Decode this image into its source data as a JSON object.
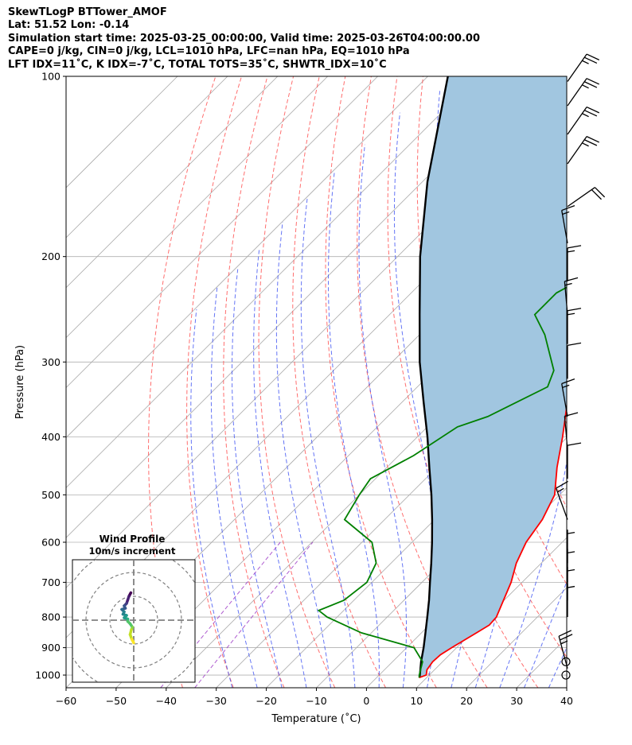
{
  "header": {
    "line1": "SkewTLogP BTTower_AMOF",
    "line2": "Lat: 51.52   Lon: -0.14",
    "line3": "Simulation start time: 2025-03-25_00:00:00, Valid time: 2025-03-26T04:00:00.00",
    "line4": "CAPE=0 j/kg, CIN=0 j/kg, LCL=1010 hPa, LFC=nan hPa, EQ=1010 hPa",
    "line5": "LFT IDX=11˚C, K IDX=-7˚C, TOTAL TOTS=35˚C, SHWTR_IDX=10˚C"
  },
  "chart_data": {
    "type": "skewt",
    "xlabel": "Temperature (˚C)",
    "ylabel": "Pressure (hPa)",
    "xlim": [
      -60,
      40
    ],
    "ylim": [
      1050,
      100
    ],
    "xticks": [
      "−60",
      "−50",
      "−40",
      "−30",
      "−20",
      "−10",
      "0",
      "10",
      "20",
      "30",
      "40"
    ],
    "yticks": [
      "100",
      "200",
      "300",
      "400",
      "500",
      "600",
      "700",
      "800",
      "900",
      "1000"
    ],
    "temperature_profile": [
      {
        "p": 1010,
        "t": 8.5
      },
      {
        "p": 1000,
        "t": 9.4
      },
      {
        "p": 980,
        "t": 8.5
      },
      {
        "p": 950,
        "t": 8.0
      },
      {
        "p": 925,
        "t": 8.2
      },
      {
        "p": 900,
        "t": 9.0
      },
      {
        "p": 850,
        "t": 11.0
      },
      {
        "p": 825,
        "t": 12.0
      },
      {
        "p": 800,
        "t": 11.8
      },
      {
        "p": 700,
        "t": 7.8
      },
      {
        "p": 650,
        "t": 5.0
      },
      {
        "p": 600,
        "t": 2.8
      },
      {
        "p": 550,
        "t": 1.5
      },
      {
        "p": 500,
        "t": -1.0
      },
      {
        "p": 450,
        "t": -6.0
      },
      {
        "p": 400,
        "t": -11.0
      },
      {
        "p": 350,
        "t": -17.0
      },
      {
        "p": 300,
        "t": -24.5
      },
      {
        "p": 270,
        "t": -29.5
      },
      {
        "p": 250,
        "t": -32.5
      },
      {
        "p": 230,
        "t": -33.5
      },
      {
        "p": 215,
        "t": -35.0
      },
      {
        "p": 200,
        "t": -37.0
      },
      {
        "p": 180,
        "t": -37.5
      },
      {
        "p": 160,
        "t": -36.0
      },
      {
        "p": 150,
        "t": -35.5
      },
      {
        "p": 135,
        "t": -34.5
      },
      {
        "p": 120,
        "t": -34.5
      },
      {
        "p": 110,
        "t": -36.0
      },
      {
        "p": 100,
        "t": -38.0
      }
    ],
    "dewpoint_profile": [
      {
        "p": 1010,
        "td": 8.5
      },
      {
        "p": 1000,
        "td": 8.0
      },
      {
        "p": 950,
        "td": 6.0
      },
      {
        "p": 900,
        "td": 1.5
      },
      {
        "p": 850,
        "td": -12.0
      },
      {
        "p": 800,
        "td": -22.0
      },
      {
        "p": 780,
        "td": -25.0
      },
      {
        "p": 750,
        "td": -22.0
      },
      {
        "p": 700,
        "td": -21.0
      },
      {
        "p": 650,
        "td": -23.0
      },
      {
        "p": 600,
        "td": -28.0
      },
      {
        "p": 550,
        "td": -38.0
      },
      {
        "p": 500,
        "td": -40.0
      },
      {
        "p": 470,
        "td": -41.0
      },
      {
        "p": 430,
        "td": -37.0
      },
      {
        "p": 385,
        "td": -34.0
      },
      {
        "p": 370,
        "td": -30.0
      },
      {
        "p": 330,
        "td": -24.0
      },
      {
        "p": 310,
        "td": -26.0
      },
      {
        "p": 270,
        "td": -35.0
      },
      {
        "p": 250,
        "td": -41.0
      },
      {
        "p": 230,
        "td": -41.0
      },
      {
        "p": 205,
        "td": -36.0
      },
      {
        "p": 180,
        "td": -42.0
      },
      {
        "p": 160,
        "td": -42.5
      },
      {
        "p": 145,
        "td": -43.0
      },
      {
        "p": 130,
        "td": -41.0
      },
      {
        "p": 100,
        "td": -35.0
      }
    ],
    "parcel_profile": [
      {
        "p": 1010,
        "t": 8.6
      },
      {
        "p": 950,
        "t": 5.7
      },
      {
        "p": 900,
        "t": 3.4
      },
      {
        "p": 850,
        "t": 0.8
      },
      {
        "p": 800,
        "t": -2.0
      },
      {
        "p": 750,
        "t": -5.0
      },
      {
        "p": 700,
        "t": -8.4
      },
      {
        "p": 650,
        "t": -12.0
      },
      {
        "p": 600,
        "t": -16.0
      },
      {
        "p": 550,
        "t": -20.5
      },
      {
        "p": 500,
        "t": -25.6
      },
      {
        "p": 450,
        "t": -31.5
      },
      {
        "p": 400,
        "t": -38.0
      },
      {
        "p": 350,
        "t": -45.7
      },
      {
        "p": 300,
        "t": -54.5
      },
      {
        "p": 250,
        "t": -64.0
      },
      {
        "p": 200,
        "t": -75.5
      },
      {
        "p": 150,
        "t": -89.0
      },
      {
        "p": 100,
        "t": -106.0
      }
    ],
    "wind_barbs": [
      {
        "p": 1000,
        "speed_kt": 0
      },
      {
        "p": 950,
        "speed_kt": 0
      },
      {
        "p": 975,
        "speed_kt": 25,
        "dir": 255
      },
      {
        "p": 800,
        "speed_kt": 5,
        "dir": 270
      },
      {
        "p": 750,
        "speed_kt": 5,
        "dir": 270
      },
      {
        "p": 700,
        "speed_kt": 5,
        "dir": 270
      },
      {
        "p": 650,
        "speed_kt": 5,
        "dir": 270
      },
      {
        "p": 550,
        "speed_kt": 15,
        "dir": 250
      },
      {
        "p": 470,
        "speed_kt": 10,
        "dir": 270
      },
      {
        "p": 420,
        "speed_kt": 10,
        "dir": 265
      },
      {
        "p": 370,
        "speed_kt": 15,
        "dir": 260
      },
      {
        "p": 320,
        "speed_kt": 10,
        "dir": 270
      },
      {
        "p": 280,
        "speed_kt": 15,
        "dir": 270
      },
      {
        "p": 250,
        "speed_kt": 15,
        "dir": 265
      },
      {
        "p": 220,
        "speed_kt": 15,
        "dir": 270
      },
      {
        "p": 190,
        "speed_kt": 15,
        "dir": 260
      },
      {
        "p": 165,
        "speed_kt": 20,
        "dir": 325
      },
      {
        "p": 140,
        "speed_kt": 25,
        "dir": 305
      },
      {
        "p": 125,
        "speed_kt": 25,
        "dir": 305
      },
      {
        "p": 112,
        "speed_kt": 25,
        "dir": 305
      },
      {
        "p": 102,
        "speed_kt": 25,
        "dir": 305
      }
    ],
    "hodograph": {
      "title": "Wind Profile",
      "subtitle": "10m/s increment",
      "points": [
        {
          "u": -1.2,
          "v": 11.5
        },
        {
          "u": -2,
          "v": 10
        },
        {
          "u": -2.5,
          "v": 8.5
        },
        {
          "u": -3,
          "v": 7
        },
        {
          "u": -4,
          "v": 6
        },
        {
          "u": -3.5,
          "v": 5
        },
        {
          "u": -5,
          "v": 4.5
        },
        {
          "u": -4,
          "v": 3.5
        },
        {
          "u": -4.5,
          "v": 2.5
        },
        {
          "u": -3,
          "v": 2
        },
        {
          "u": -4,
          "v": 1
        },
        {
          "u": -2.5,
          "v": 0.5
        },
        {
          "u": -2.5,
          "v": -0.5
        },
        {
          "u": -1.5,
          "v": -1.5
        },
        {
          "u": -0.5,
          "v": -3
        },
        {
          "u": -1,
          "v": -4
        },
        {
          "u": -1.5,
          "v": -6
        },
        {
          "u": -0.8,
          "v": -8
        },
        {
          "u": 0,
          "v": -9.5
        }
      ]
    },
    "colors": {
      "temperature": "#ff0000",
      "dewpoint": "#008000",
      "parcel": "#000000",
      "cape_fill": "#a1c6e0",
      "dry_adiabat": "#ff5555",
      "moist_adiabat": "#3f52f2",
      "mixing_ratio": "#a040c8",
      "isotherm": "#a9a9a9"
    }
  }
}
